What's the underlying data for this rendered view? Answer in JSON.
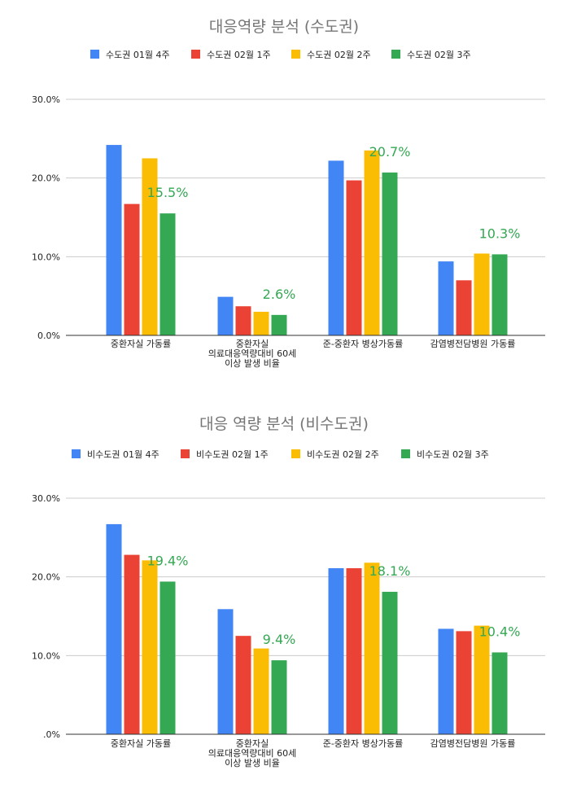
{
  "chart_data": [
    {
      "type": "bar",
      "title": "대응역량 분석 (수도권)",
      "categories": [
        [
          "중환자실 가동률"
        ],
        [
          "중환자실",
          "의료대응역량대비 60세",
          "이상 발생 비율"
        ],
        [
          "준-중환자 병상가동률"
        ],
        [
          "감염병전담병원 가동률"
        ]
      ],
      "series": [
        {
          "name": "수도권 01월 4주",
          "color": "#4285F4",
          "values": [
            24.2,
            4.9,
            22.2,
            9.4
          ]
        },
        {
          "name": "수도권 02월 1주",
          "color": "#EA4335",
          "values": [
            16.7,
            3.7,
            19.7,
            7.0
          ]
        },
        {
          "name": "수도권 02월 2주",
          "color": "#FBBC04",
          "values": [
            22.5,
            3.0,
            23.5,
            10.4
          ]
        },
        {
          "name": "수도권 02월 3주",
          "color": "#34A853",
          "values": [
            15.5,
            2.6,
            20.7,
            10.3
          ]
        }
      ],
      "data_labels": [
        "15.5%",
        "2.6%",
        "20.7%",
        "10.3%"
      ],
      "label_series_index": 3,
      "yticks": [
        "0.0%",
        "10.0%",
        "20.0%",
        "30.0%"
      ],
      "ylim": [
        0,
        30
      ],
      "grid": true,
      "legend": "top"
    },
    {
      "type": "bar",
      "title": "대응 역량 분석 (비수도권)",
      "categories": [
        [
          "중환자실 가동률"
        ],
        [
          "중환자실",
          "의료대응역량대비 60세",
          "이상 발생 비율"
        ],
        [
          "준-중환자 병상가동률"
        ],
        [
          "감염병전담병원 가동률"
        ]
      ],
      "series": [
        {
          "name": "비수도권 01월 4주",
          "color": "#4285F4",
          "values": [
            26.7,
            15.9,
            21.1,
            13.4
          ]
        },
        {
          "name": "비수도권 02월 1주",
          "color": "#EA4335",
          "values": [
            22.8,
            12.5,
            21.1,
            13.1
          ]
        },
        {
          "name": "비수도권 02월 2주",
          "color": "#FBBC04",
          "values": [
            22.1,
            10.9,
            21.8,
            13.8
          ]
        },
        {
          "name": "비수도권 02월 3주",
          "color": "#34A853",
          "values": [
            19.4,
            9.4,
            18.1,
            10.4
          ]
        }
      ],
      "data_labels": [
        "19.4%",
        "9.4%",
        "18.1%",
        "10.4%"
      ],
      "label_series_index": 3,
      "yticks": [
        ".0%",
        "10.0%",
        "20.0%",
        "30.0%"
      ],
      "ylim": [
        0,
        30
      ],
      "grid": true,
      "legend": "top"
    }
  ]
}
